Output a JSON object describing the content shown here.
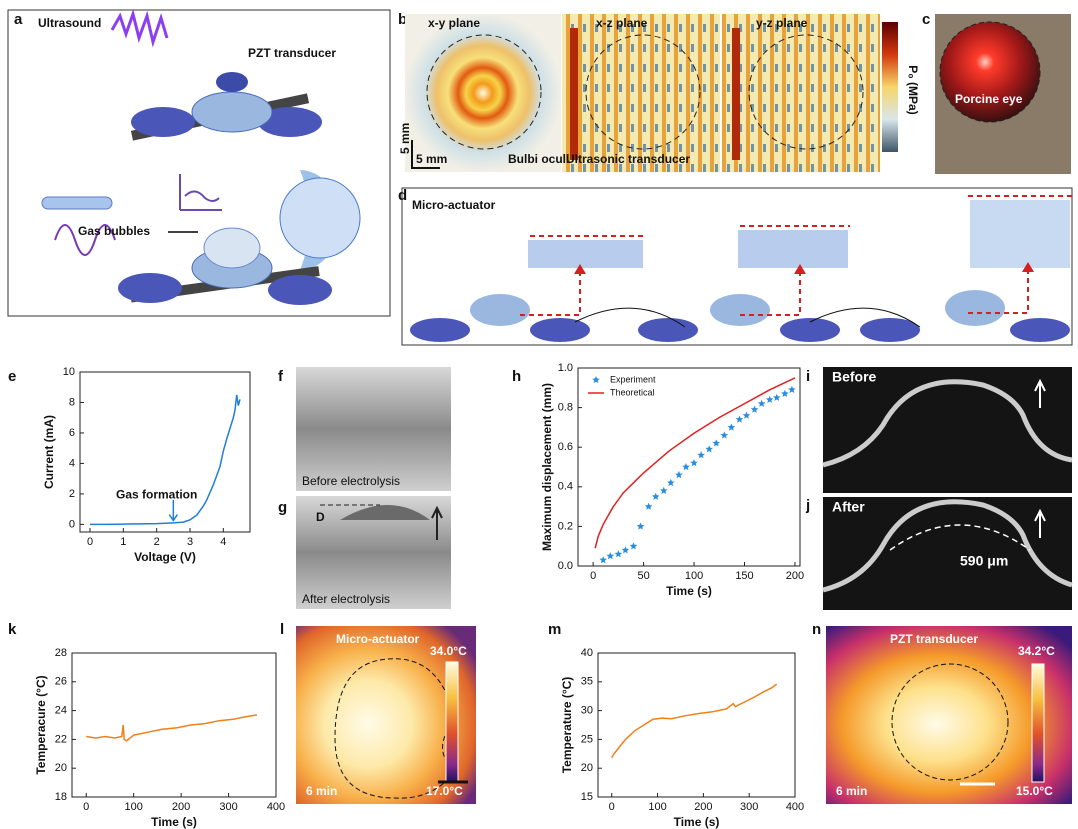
{
  "panel_labels": [
    "a",
    "b",
    "c",
    "d",
    "e",
    "f",
    "g",
    "h",
    "i",
    "j",
    "k",
    "l",
    "m",
    "n"
  ],
  "a": {
    "title": "Ultrasound",
    "transducer": "PZT transducer",
    "bubbles": "Gas bubbles"
  },
  "b": {
    "planes": [
      "x-y plane",
      "x-z plane",
      "y-z plane"
    ],
    "scale_y": "5 mm",
    "scale_x": "5 mm",
    "bulbi": "Bulbi oculi",
    "transducer": "Ultrasonic transducer",
    "colorbar": "P₀ (MPa)"
  },
  "c": {
    "label": "Porcine eye"
  },
  "d": {
    "title": "Micro-actuator"
  },
  "f": {
    "label": "Before electrolysis"
  },
  "g": {
    "label": "After electrolysis",
    "d": "D"
  },
  "i": {
    "label": "Before"
  },
  "j": {
    "label": "After",
    "distance": "590 μm"
  },
  "l": {
    "title": "Micro-actuator",
    "max": "34.0°C",
    "min": "17.0°C",
    "time": "6 min"
  },
  "n": {
    "title": "PZT transducer",
    "max": "34.2°C",
    "min": "15.0°C",
    "time": "6 min"
  },
  "chart_data": [
    {
      "type": "line",
      "xlabel": "Voltage (V)",
      "ylabel": "Current (mA)",
      "annotation": "Gas formation",
      "xlim": [
        -0.3,
        4.8
      ],
      "ylim": [
        -0.5,
        10
      ],
      "xticks": [
        0,
        1,
        2,
        3,
        4
      ],
      "yticks": [
        0,
        2,
        4,
        6,
        8,
        10
      ],
      "series": [
        {
          "color": "#1f7fd6",
          "mode": "line",
          "x": [
            0,
            0.5,
            1,
            1.5,
            2,
            2.5,
            2.8,
            3.0,
            3.2,
            3.4,
            3.5,
            3.6,
            3.7,
            3.8,
            3.9,
            4.0,
            4.1,
            4.2,
            4.3,
            4.35,
            4.4,
            4.45,
            4.5
          ],
          "values": [
            0,
            0,
            0.02,
            0.03,
            0.05,
            0.1,
            0.15,
            0.3,
            0.6,
            1.2,
            1.6,
            2.1,
            2.6,
            3.2,
            3.8,
            4.8,
            5.6,
            6.3,
            7.0,
            7.5,
            8.5,
            7.8,
            8.2
          ]
        }
      ]
    },
    {
      "type": "line",
      "xlabel": "Time (s)",
      "ylabel": "Maximum displacement (mm)",
      "xlim": [
        -15,
        205
      ],
      "ylim": [
        0,
        1.0
      ],
      "xticks": [
        0,
        50,
        100,
        150,
        200
      ],
      "yticks": [
        {
          "value": 0,
          "label": "0.0"
        },
        0.2,
        0.4,
        0.6,
        0.8,
        {
          "value": 1,
          "label": "1.0"
        }
      ],
      "legend": "upper left",
      "series": [
        {
          "name": "Experiment",
          "color": "#2a8ee0",
          "mode": "markers",
          "x": [
            10,
            17,
            25,
            32,
            40,
            47,
            55,
            62,
            70,
            77,
            85,
            92,
            100,
            107,
            115,
            122,
            130,
            137,
            145,
            152,
            160,
            167,
            175,
            182,
            190,
            197
          ],
          "values": [
            0.03,
            0.05,
            0.06,
            0.08,
            0.1,
            0.2,
            0.3,
            0.35,
            0.38,
            0.42,
            0.46,
            0.5,
            0.52,
            0.56,
            0.59,
            0.62,
            0.66,
            0.7,
            0.74,
            0.76,
            0.79,
            0.82,
            0.84,
            0.85,
            0.87,
            0.89
          ]
        },
        {
          "name": "Theoretical",
          "color": "#e02020",
          "mode": "line",
          "x": [
            2,
            5,
            10,
            20,
            30,
            40,
            50,
            75,
            100,
            125,
            150,
            175,
            200
          ],
          "values": [
            0.09,
            0.15,
            0.21,
            0.3,
            0.37,
            0.42,
            0.47,
            0.58,
            0.67,
            0.75,
            0.82,
            0.89,
            0.95
          ]
        }
      ]
    },
    {
      "type": "line",
      "xlabel": "Time (s)",
      "ylabel": "Temperacure (°C)",
      "xlim": [
        -30,
        400
      ],
      "ylim": [
        18,
        28
      ],
      "xticks": [
        0,
        100,
        200,
        300,
        400
      ],
      "yticks": [
        18,
        20,
        22,
        24,
        26,
        28
      ],
      "series": [
        {
          "color": "#f0801a",
          "mode": "line",
          "x": [
            0,
            20,
            40,
            60,
            75,
            78,
            80,
            85,
            100,
            130,
            160,
            190,
            220,
            250,
            280,
            310,
            340,
            360
          ],
          "values": [
            22.2,
            22.1,
            22.2,
            22.1,
            22.2,
            23.0,
            22.0,
            21.9,
            22.3,
            22.5,
            22.7,
            22.8,
            23.0,
            23.1,
            23.3,
            23.4,
            23.6,
            23.7
          ]
        }
      ]
    },
    {
      "type": "line",
      "xlabel": "Time (s)",
      "ylabel": "Temperature (°C)",
      "xlim": [
        -30,
        400
      ],
      "ylim": [
        15,
        40
      ],
      "xticks": [
        0,
        100,
        200,
        300,
        400
      ],
      "yticks": [
        15,
        20,
        25,
        30,
        35,
        40
      ],
      "series": [
        {
          "color": "#f0801a",
          "mode": "line",
          "x": [
            0,
            5,
            15,
            30,
            50,
            70,
            90,
            110,
            130,
            160,
            190,
            220,
            250,
            265,
            270,
            290,
            310,
            330,
            350,
            360
          ],
          "values": [
            21.8,
            22.5,
            23.5,
            25,
            26.5,
            27.5,
            28.5,
            28.7,
            28.6,
            29.1,
            29.5,
            29.8,
            30.3,
            31.2,
            30.7,
            31.5,
            32.3,
            33.2,
            34.0,
            34.6
          ]
        }
      ]
    }
  ]
}
